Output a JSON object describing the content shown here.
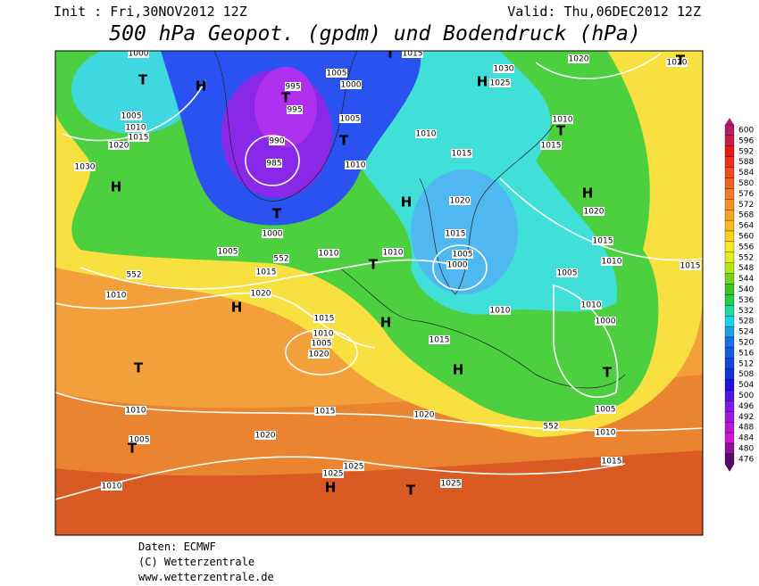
{
  "header": {
    "init": "Init : Fri,30NOV2012 12Z",
    "valid": "Valid: Thu,06DEC2012 12Z",
    "title": "500 hPa Geopot. (gpdm) und Bodendruck (hPa)"
  },
  "legend": {
    "labels": [
      600,
      596,
      592,
      588,
      584,
      580,
      576,
      572,
      568,
      564,
      560,
      556,
      552,
      548,
      544,
      540,
      536,
      532,
      528,
      524,
      520,
      516,
      512,
      508,
      504,
      500,
      496,
      492,
      488,
      484,
      480,
      476
    ]
  },
  "map": {
    "labels": [
      "1000",
      "T",
      "H",
      "1005",
      "1010",
      "1015",
      "1020",
      "1030",
      "H",
      "995",
      "T",
      "995",
      "990",
      "985",
      "T",
      "1000",
      "1005",
      "1000",
      "1005",
      "T",
      "1010",
      "1010",
      "1015",
      "H",
      "1020",
      "1015",
      "1005",
      "1000",
      "T",
      "1010",
      "1010",
      "1005",
      "1015",
      "552",
      "552",
      "1010",
      "1020",
      "H",
      "H",
      "1015",
      "1010",
      "1005",
      "1020",
      "T",
      "1015",
      "H",
      "1010",
      "1005",
      "1010",
      "1000",
      "T",
      "1005",
      "1010",
      "552",
      "1015",
      "1015",
      "1020",
      "1010",
      "1005",
      "T",
      "1020",
      "1010",
      "1025",
      "1025",
      "H",
      "T",
      "1025",
      "1030",
      "1025",
      "H",
      "1020",
      "1020",
      "T",
      "1010",
      "T",
      "1015",
      "H",
      "1020",
      "1015",
      "1010",
      "1015",
      "1015",
      "T"
    ]
  },
  "credits": [
    "Daten: ECMWF",
    "(C) Wetterzentrale",
    "www.wetterzentrale.de"
  ]
}
